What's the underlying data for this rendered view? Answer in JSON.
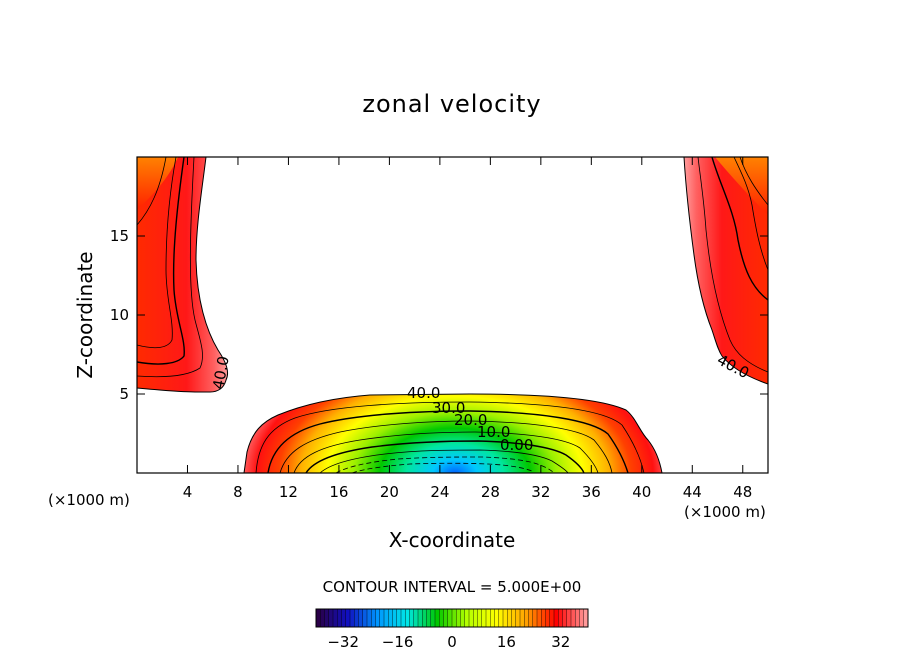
{
  "chart_data": {
    "type": "heatmap",
    "title": "zonal velocity",
    "xlabel": "X-coordinate",
    "ylabel": "Z-coordinate",
    "x_unit_left": "(×1000 m)",
    "x_unit_right": "(×1000 m)",
    "xlim": [
      0,
      50
    ],
    "ylim": [
      0,
      20
    ],
    "x_ticks": [
      4,
      8,
      12,
      16,
      20,
      24,
      28,
      32,
      36,
      40,
      44,
      48
    ],
    "y_ticks": [
      5,
      10,
      15
    ],
    "contour_interval_text": "CONTOUR INTERVAL = 5.000E+00",
    "contour_labels": [
      {
        "text": "40.0",
        "x": 6.5,
        "z": 6.5
      },
      {
        "text": "40.0",
        "x": 47.0,
        "z": 6.8
      },
      {
        "text": "40.0",
        "x": 25.0,
        "z": 5.2
      },
      {
        "text": "30.0",
        "x": 27.0,
        "z": 4.1
      },
      {
        "text": "20.0",
        "x": 29.0,
        "z": 3.3
      },
      {
        "text": "10.0",
        "x": 30.7,
        "z": 2.6
      },
      {
        "text": "0.00",
        "x": 32.0,
        "z": 1.8
      }
    ],
    "regions": {
      "bottom_jet": {
        "x_range": [
          8.7,
          41.5
        ],
        "top_z": 5.0,
        "core_x": 26.5,
        "min_value": -8
      },
      "left_jet": {
        "x_range": [
          0,
          7
        ],
        "z_range": [
          5.3,
          20
        ],
        "max_value": 55
      },
      "right_jet": {
        "x_range": [
          43.5,
          50
        ],
        "z_range": [
          5.7,
          20
        ],
        "max_value": 55
      }
    },
    "colorbar": {
      "range": [
        -40,
        40
      ],
      "ticks": [
        -32,
        -16,
        0,
        16,
        32
      ],
      "tick_labels": [
        "−32",
        "−16",
        "0",
        "16",
        "32"
      ]
    },
    "colors": {
      "background": "#ffffff",
      "axis": "#000000",
      "scale": [
        "#2a0048",
        "#1010c0",
        "#0096ff",
        "#00e6e6",
        "#00c800",
        "#b4ff00",
        "#ffff00",
        "#ffa000",
        "#ff0000",
        "#ff9a9a"
      ]
    }
  }
}
